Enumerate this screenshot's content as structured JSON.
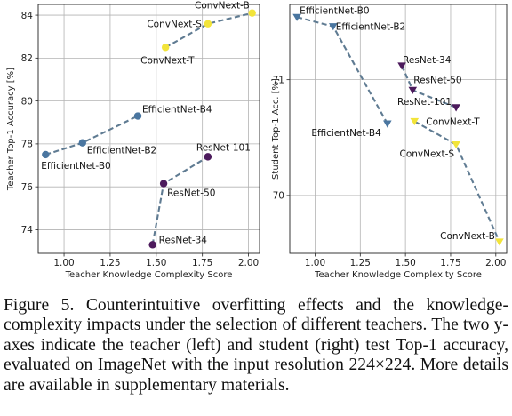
{
  "chart_data": [
    {
      "type": "line",
      "xlabel": "Teacher Knowledge Complexity Score",
      "ylabel": "Teacher Top-1 Accuracy [%]",
      "xlim": [
        0.86,
        2.06
      ],
      "ylim": [
        72.9,
        84.5
      ],
      "xticks": [
        1.0,
        1.25,
        1.5,
        1.75,
        2.0
      ],
      "yticks": [
        74,
        76,
        78,
        80,
        82,
        84
      ],
      "xtick_labels": [
        "1.00",
        "1.25",
        "1.50",
        "1.75",
        "2.00"
      ],
      "ytick_labels": [
        "74",
        "76",
        "78",
        "80",
        "82",
        "84"
      ],
      "grid": true,
      "series": [
        {
          "name": "EfficientNet",
          "color": "#4a76a0",
          "points": [
            {
              "label": "EfficientNet-B0",
              "x": 0.9,
              "y": 77.5
            },
            {
              "label": "EfficientNet-B2",
              "x": 1.1,
              "y": 78.05
            },
            {
              "label": "EfficientNet-B4",
              "x": 1.4,
              "y": 79.3
            }
          ]
        },
        {
          "name": "ResNet",
          "color": "#4c1a5c",
          "points": [
            {
              "label": "ResNet-34",
              "x": 1.48,
              "y": 73.3
            },
            {
              "label": "ResNet-50",
              "x": 1.54,
              "y": 76.15
            },
            {
              "label": "ResNet-101",
              "x": 1.78,
              "y": 77.4
            }
          ]
        },
        {
          "name": "ConvNext",
          "color": "#f2e43a",
          "points": [
            {
              "label": "ConvNext-T",
              "x": 1.55,
              "y": 82.5
            },
            {
              "label": "ConvNext-S",
              "x": 1.78,
              "y": 83.6
            },
            {
              "label": "ConvNext-B",
              "x": 2.02,
              "y": 84.1
            }
          ]
        }
      ]
    },
    {
      "type": "line",
      "xlabel": "Teacher Knowledge Complexity Score",
      "ylabel": "Student Top-1 Acc. [%]",
      "xlim": [
        0.86,
        2.06
      ],
      "ylim": [
        69.5,
        71.65
      ],
      "xticks": [
        1.0,
        1.25,
        1.5,
        1.75,
        2.0
      ],
      "yticks": [
        70,
        71
      ],
      "xtick_labels": [
        "1.00",
        "1.25",
        "1.50",
        "1.75",
        "2.00"
      ],
      "ytick_labels": [
        "70",
        "71"
      ],
      "grid": true,
      "series": [
        {
          "name": "EfficientNet",
          "color": "#4a76a0",
          "points": [
            {
              "label": "EfficientNet-B0",
              "x": 0.9,
              "y": 71.54
            },
            {
              "label": "EfficientNet-B2",
              "x": 1.1,
              "y": 71.46
            },
            {
              "label": "EfficientNet-B4",
              "x": 1.4,
              "y": 70.62
            }
          ]
        },
        {
          "name": "ResNet",
          "color": "#4c1a5c",
          "points": [
            {
              "label": "ResNet-34",
              "x": 1.48,
              "y": 71.12
            },
            {
              "label": "ResNet-50",
              "x": 1.54,
              "y": 70.91
            },
            {
              "label": "ResNet-101",
              "x": 1.78,
              "y": 70.76
            }
          ]
        },
        {
          "name": "ConvNext",
          "color": "#f2e43a",
          "points": [
            {
              "label": "ConvNext-T",
              "x": 1.55,
              "y": 70.64
            },
            {
              "label": "ConvNext-S",
              "x": 1.78,
              "y": 70.44
            },
            {
              "label": "ConvNext-B",
              "x": 2.02,
              "y": 69.6
            }
          ]
        }
      ]
    }
  ],
  "caption": "Figure 5. Counterintuitive overfitting effects and the knowledge-complexity impacts under the selection of different teachers. The two y-axes indicate the teacher (left) and student (right) test Top-1 accuracy, evaluated on ImageNet with the input resolution 224×224. More details are available in supplementary materials."
}
